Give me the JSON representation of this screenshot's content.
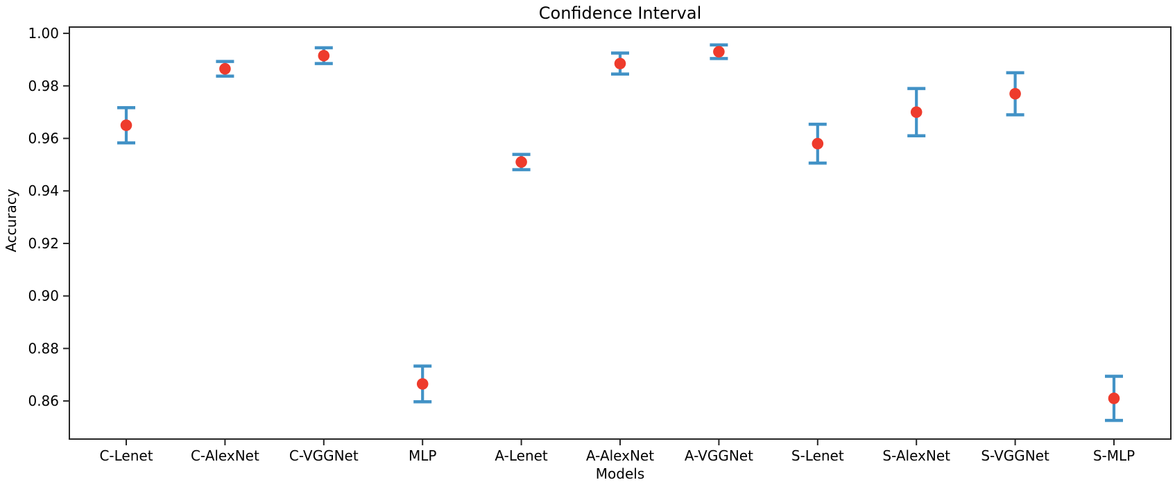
{
  "chart_data": {
    "type": "scatter",
    "subtype": "errorbar",
    "title": "Confidence Interval",
    "xlabel": "Models",
    "ylabel": "Accuracy",
    "categories": [
      "C-Lenet",
      "C-AlexNet",
      "C-VGGNet",
      "MLP",
      "A-Lenet",
      "A-AlexNet",
      "A-VGGNet",
      "S-Lenet",
      "S-AlexNet",
      "S-VGGNet",
      "S-MLP"
    ],
    "values": [
      0.965,
      0.9865,
      0.9915,
      0.8665,
      0.951,
      0.9885,
      0.993,
      0.958,
      0.97,
      0.977,
      0.861
    ],
    "errors": [
      0.0067,
      0.0028,
      0.003,
      0.0068,
      0.0029,
      0.004,
      0.0026,
      0.0074,
      0.009,
      0.008,
      0.0084
    ],
    "y_ticks": [
      0.86,
      0.88,
      0.9,
      0.92,
      0.94,
      0.96,
      0.98,
      1.0
    ],
    "y_tick_labels": [
      "0.86",
      "0.88",
      "0.90",
      "0.92",
      "0.94",
      "0.96",
      "0.98",
      "1.00"
    ],
    "ylim": [
      0.8455,
      1.0024
    ],
    "grid": false,
    "legend": null,
    "colors": {
      "marker": "#ee3b2c",
      "errorbar": "#4292c6",
      "axis": "#262626",
      "text": "#000000"
    }
  }
}
